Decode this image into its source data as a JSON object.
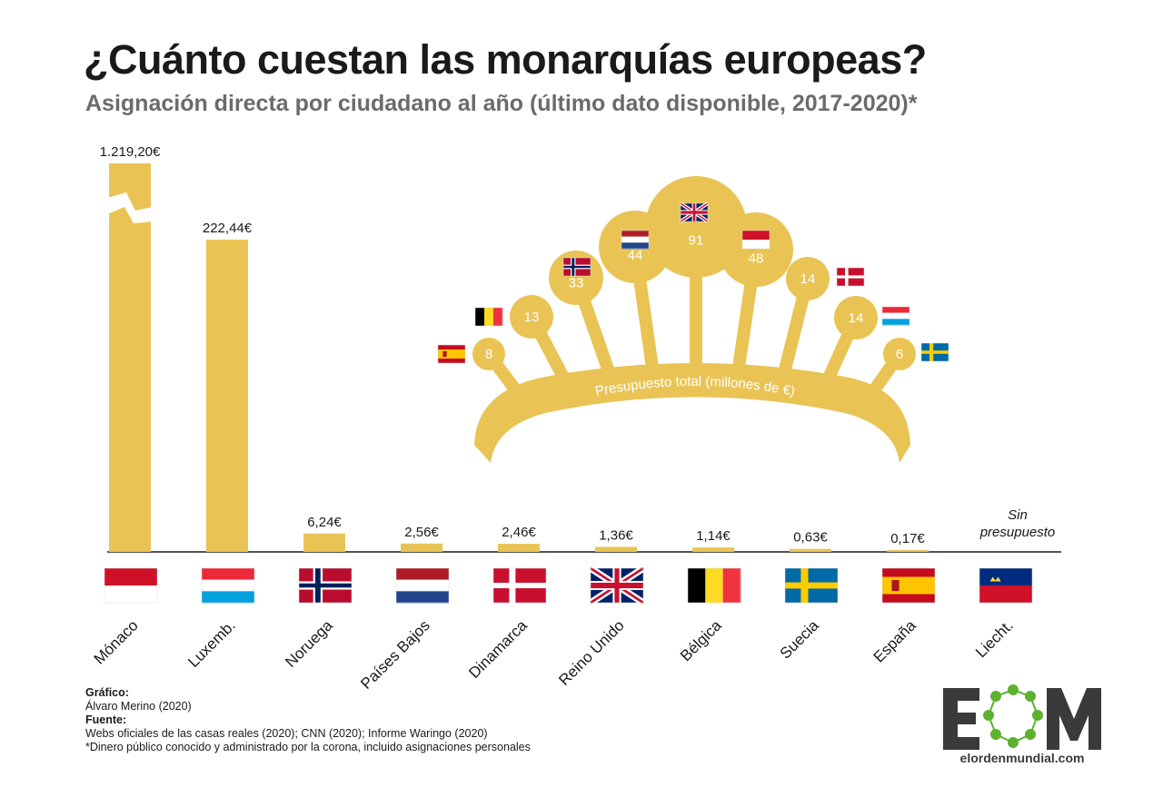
{
  "chart_data": {
    "type": "bar",
    "title": "¿Cuánto cuestan las monarquías europeas?",
    "subtitle": "Asignación directa por ciudadano al año (último dato disponible, 2017-2020)*",
    "categories": [
      "Mónaco",
      "Luxemb.",
      "Noruega",
      "Países Bajos",
      "Dinamarca",
      "Reino Unido",
      "Bélgica",
      "Suecia",
      "España",
      "Liecht."
    ],
    "values": [
      1219.2,
      222.44,
      6.24,
      2.56,
      2.46,
      1.36,
      1.14,
      0.63,
      0.17,
      null
    ],
    "value_labels": [
      "1.219,20€",
      "222,44€",
      "6,24€",
      "2,56€",
      "2,46€",
      "1,36€",
      "1,14€",
      "0,63€",
      "0,17€",
      "Sin presupuesto"
    ],
    "axis_break": true,
    "bar_color": "#E9C455",
    "inset": {
      "type": "crown",
      "label": "Presupuesto total (millones de €)",
      "items": [
        {
          "country": "España",
          "value": 8
        },
        {
          "country": "Bélgica",
          "value": 13
        },
        {
          "country": "Noruega",
          "value": 33
        },
        {
          "country": "Países Bajos",
          "value": 44
        },
        {
          "country": "Reino Unido",
          "value": 91
        },
        {
          "country": "Mónaco",
          "value": 48
        },
        {
          "country": "Dinamarca",
          "value": 14
        },
        {
          "country": "Luxemburgo",
          "value": 14
        },
        {
          "country": "Suecia",
          "value": 6
        }
      ]
    }
  },
  "footer": {
    "grafico_label": "Gráfico:",
    "grafico_value": "Álvaro Merino (2020)",
    "fuente_label": "Fuente:",
    "fuente_value": "Webs oficiales de las casas reales (2020); CNN (2020); Informe Waringo (2020)",
    "note": "*Dinero público conocido y administrado por la corona, incluido asignaciones personales"
  },
  "logo": {
    "letters": "EOM",
    "url": "elordenmundial.com"
  },
  "colors": {
    "accent": "#E9C455",
    "text": "#1a1a1a",
    "subtitle": "#6b6b6b",
    "logo_green": "#5db12f",
    "logo_gray": "#3a3a3a"
  }
}
